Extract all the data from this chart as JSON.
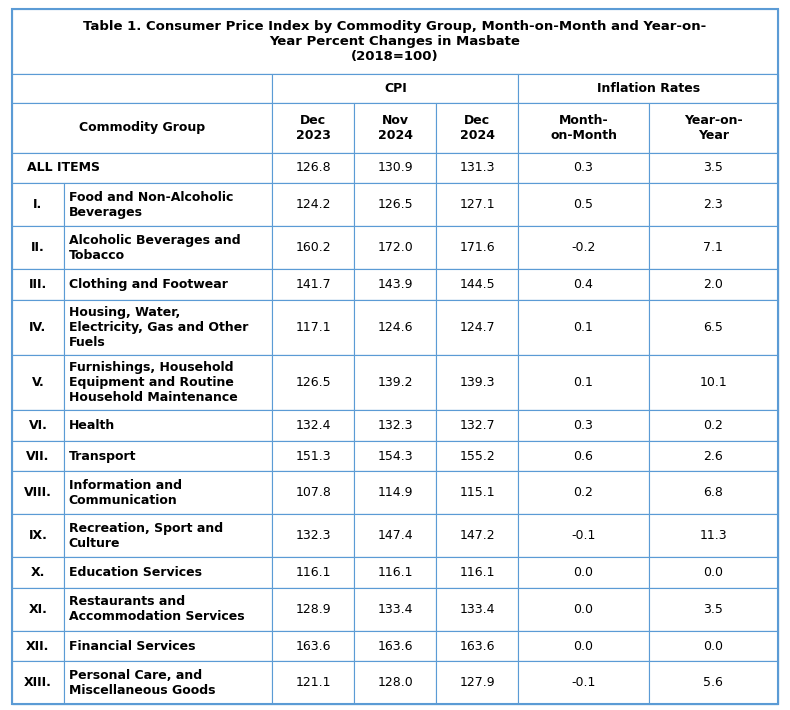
{
  "title": "Table 1. Consumer Price Index by Commodity Group, Month-on-Month and Year-on-\nYear Percent Changes in Masbate\n(2018=100)",
  "col_headers_row1": [
    "",
    "CPI",
    "",
    "",
    "Inflation Rates",
    ""
  ],
  "col_headers_row2": [
    "Commodity Group",
    "Dec\n2023",
    "Nov\n2024",
    "Dec\n2024",
    "Month-\non-Month",
    "Year-on-\nYear"
  ],
  "rows": [
    {
      "num": "",
      "name": "ALL ITEMS",
      "vals": [
        "126.8",
        "130.9",
        "131.3",
        "0.3",
        "3.5"
      ],
      "all_items": true
    },
    {
      "num": "I.",
      "name": "Food and Non-Alcoholic\nBeverages",
      "vals": [
        "124.2",
        "126.5",
        "127.1",
        "0.5",
        "2.3"
      ],
      "all_items": false
    },
    {
      "num": "II.",
      "name": "Alcoholic Beverages and\nTobacco",
      "vals": [
        "160.2",
        "172.0",
        "171.6",
        "-0.2",
        "7.1"
      ],
      "all_items": false
    },
    {
      "num": "III.",
      "name": "Clothing and Footwear",
      "vals": [
        "141.7",
        "143.9",
        "144.5",
        "0.4",
        "2.0"
      ],
      "all_items": false
    },
    {
      "num": "IV.",
      "name": "Housing, Water,\nElectricity, Gas and Other\nFuels",
      "vals": [
        "117.1",
        "124.6",
        "124.7",
        "0.1",
        "6.5"
      ],
      "all_items": false
    },
    {
      "num": "V.",
      "name": "Furnishings, Household\nEquipment and Routine\nHousehold Maintenance",
      "vals": [
        "126.5",
        "139.2",
        "139.3",
        "0.1",
        "10.1"
      ],
      "all_items": false
    },
    {
      "num": "VI.",
      "name": "Health",
      "vals": [
        "132.4",
        "132.3",
        "132.7",
        "0.3",
        "0.2"
      ],
      "all_items": false
    },
    {
      "num": "VII.",
      "name": "Transport",
      "vals": [
        "151.3",
        "154.3",
        "155.2",
        "0.6",
        "2.6"
      ],
      "all_items": false
    },
    {
      "num": "VIII.",
      "name": "Information and\nCommunication",
      "vals": [
        "107.8",
        "114.9",
        "115.1",
        "0.2",
        "6.8"
      ],
      "all_items": false
    },
    {
      "num": "IX.",
      "name": "Recreation, Sport and\nCulture",
      "vals": [
        "132.3",
        "147.4",
        "147.2",
        "-0.1",
        "11.3"
      ],
      "all_items": false
    },
    {
      "num": "X.",
      "name": "Education Services",
      "vals": [
        "116.1",
        "116.1",
        "116.1",
        "0.0",
        "0.0"
      ],
      "all_items": false
    },
    {
      "num": "XI.",
      "name": "Restaurants and\nAccommodation Services",
      "vals": [
        "128.9",
        "133.4",
        "133.4",
        "0.0",
        "3.5"
      ],
      "all_items": false
    },
    {
      "num": "XII.",
      "name": "Financial Services",
      "vals": [
        "163.6",
        "163.6",
        "163.6",
        "0.0",
        "0.0"
      ],
      "all_items": false
    },
    {
      "num": "XIII.",
      "name": "Personal Care, and\nMiscellaneous Goods",
      "vals": [
        "121.1",
        "128.0",
        "127.9",
        "-0.1",
        "5.6"
      ],
      "all_items": false
    }
  ],
  "border_color": "#5b9bd5",
  "text_color": "#000000",
  "figsize": [
    7.9,
    7.1
  ],
  "dpi": 100,
  "title_fontsize": 9.5,
  "header_fontsize": 9.0,
  "body_fontsize": 9.0
}
